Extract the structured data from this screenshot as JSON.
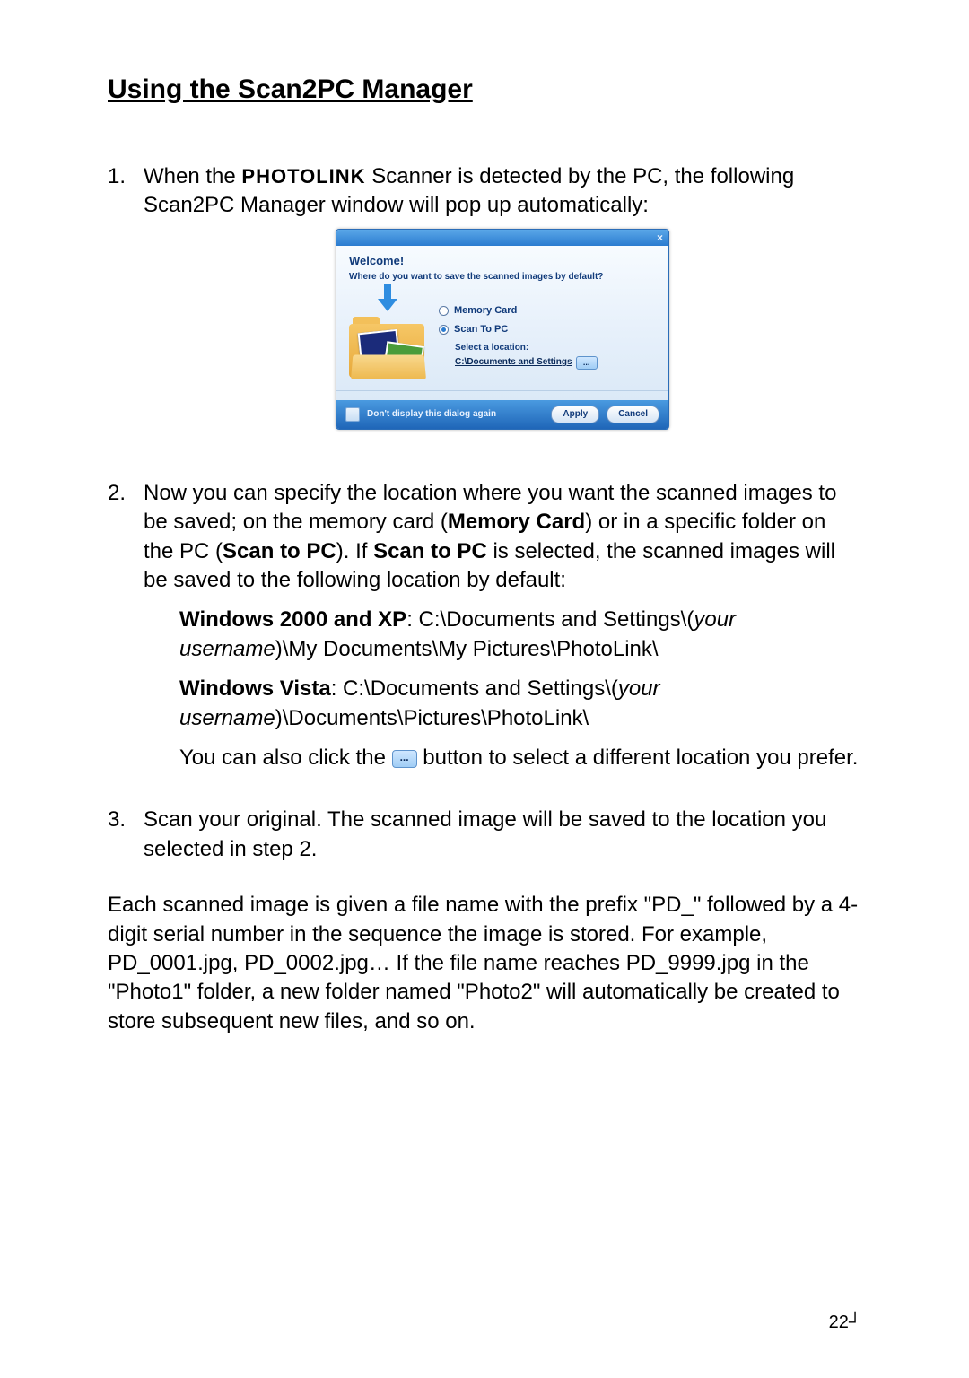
{
  "heading": "Using the Scan2PC Manager",
  "item1_pre": "When the ",
  "item1_brand": "PHOTOLINK",
  "item1_post": " Scanner is detected by the PC, the following Scan2PC Manager window will pop up automatically:",
  "dialog": {
    "welcome": "Welcome!",
    "prompt": "Where do you want to save the scanned images by default?",
    "opt_memory": "Memory Card",
    "opt_scan": "Scan To PC",
    "select_label": "Select a location:",
    "location": "C:\\Documents and Settings",
    "browse": "...",
    "dont_display": "Don't display this dialog again",
    "apply": "Apply",
    "cancel": "Cancel"
  },
  "item2_a": "Now you can specify the location where you want the scanned images to be saved; on the memory card (",
  "item2_b": "Memory Card",
  "item2_c": ") or in a specific folder on the PC (",
  "item2_d": "Scan to PC",
  "item2_e": "). If ",
  "item2_f": "Scan to PC",
  "item2_g": " is selected, the scanned images will be saved to the following location by default:",
  "winxp_a": "Windows 2000 and XP",
  "winxp_b": ": C:\\Documents and Settings\\(",
  "winxp_c": "your username",
  "winxp_d": ")\\My Documents\\My Pictures\\PhotoLink\\",
  "vista_a": "Windows Vista",
  "vista_b": ": C:\\Documents and Settings\\(",
  "vista_c": "your username",
  "vista_d": ")\\Documents\\Pictures\\PhotoLink\\",
  "click_a": "You can also click the ",
  "click_b": " button to select a different location you prefer.",
  "item3": "Scan your original. The scanned image will be saved to the location you selected in step 2.",
  "closing": "Each scanned image is given a file name with the prefix \"PD_\" followed by a 4- digit serial number in the sequence the image is stored. For example, PD_0001.jpg, PD_0002.jpg… If the file name reaches PD_9999.jpg in the \"Photo1\" folder, a new folder named \"Photo2\" will automatically be created to store subsequent new files, and so on.",
  "page_num": "22",
  "end_mark": "┘",
  "num1": "1.",
  "num2": "2.",
  "num3": "3.",
  "close_x": "×",
  "inline_dots": "..."
}
